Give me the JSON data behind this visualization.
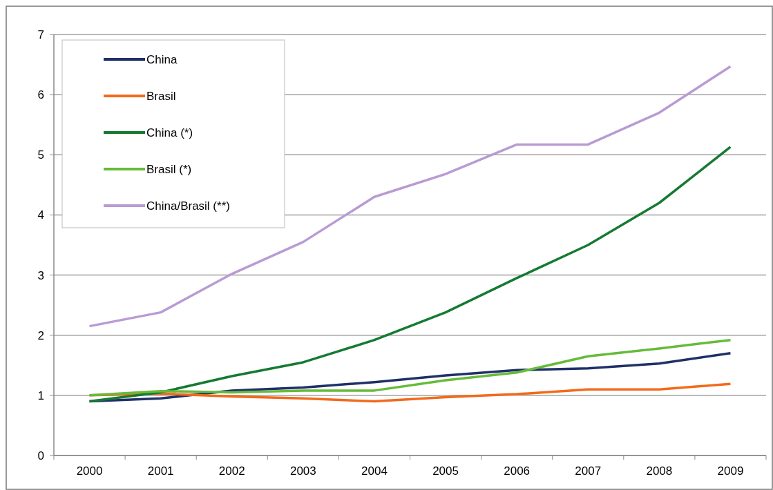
{
  "chart_data": {
    "type": "line",
    "categories": [
      "2000",
      "2001",
      "2002",
      "2003",
      "2004",
      "2005",
      "2006",
      "2007",
      "2008",
      "2009"
    ],
    "series": [
      {
        "name": "China",
        "color": "#1f3068",
        "values": [
          0.9,
          0.95,
          1.08,
          1.13,
          1.22,
          1.33,
          1.42,
          1.45,
          1.53,
          1.7
        ]
      },
      {
        "name": "Brasil",
        "color": "#f26a1b",
        "values": [
          1.0,
          1.03,
          0.98,
          0.95,
          0.9,
          0.97,
          1.02,
          1.1,
          1.1,
          1.19
        ]
      },
      {
        "name": "China (*)",
        "color": "#157a32",
        "values": [
          0.9,
          1.05,
          1.32,
          1.55,
          1.92,
          2.38,
          2.95,
          3.5,
          4.2,
          5.13
        ]
      },
      {
        "name": "Brasil (*)",
        "color": "#66bb3a",
        "values": [
          1.0,
          1.07,
          1.05,
          1.08,
          1.08,
          1.25,
          1.38,
          1.65,
          1.78,
          1.92
        ]
      },
      {
        "name": "China/Brasil (**)",
        "color": "#b99bd3",
        "values": [
          2.15,
          2.38,
          3.02,
          3.55,
          4.3,
          4.68,
          5.17,
          5.17,
          5.7,
          6.47
        ]
      }
    ],
    "ylim": [
      0,
      7
    ],
    "yticks": [
      0,
      1,
      2,
      3,
      4,
      5,
      6,
      7
    ],
    "grid": "y",
    "legend": "top left",
    "marker": "none",
    "line_style": "solid"
  }
}
